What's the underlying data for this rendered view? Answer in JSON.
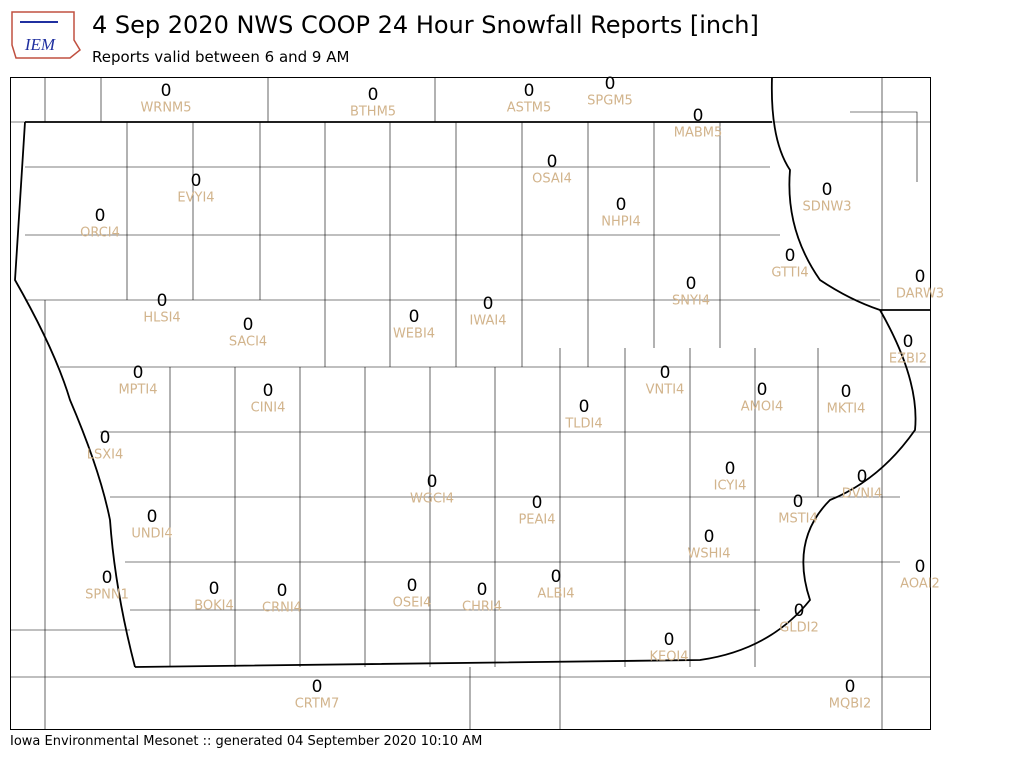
{
  "title": "4 Sep 2020 NWS COOP 24 Hour Snowfall Reports [inch]",
  "subtitle": "Reports valid between 6 and 9 AM",
  "logo": "IEM",
  "footer": "Iowa Environmental Mesonet :: generated 04 September 2020 10:10 AM",
  "stations": [
    {
      "id": "WRNM5",
      "value": 0
    },
    {
      "id": "BTHM5",
      "value": 0
    },
    {
      "id": "ASTM5",
      "value": 0
    },
    {
      "id": "SPGM5",
      "value": 0
    },
    {
      "id": "MABM5",
      "value": 0
    },
    {
      "id": "OSAI4",
      "value": 0
    },
    {
      "id": "EVYI4",
      "value": 0
    },
    {
      "id": "ORCI4",
      "value": 0
    },
    {
      "id": "NHPI4",
      "value": 0
    },
    {
      "id": "SDNW3",
      "value": 0
    },
    {
      "id": "GTTI4",
      "value": 0
    },
    {
      "id": "DARW3",
      "value": 0
    },
    {
      "id": "SNYI4",
      "value": 0
    },
    {
      "id": "HLSI4",
      "value": 0
    },
    {
      "id": "SACI4",
      "value": 0
    },
    {
      "id": "WEBI4",
      "value": 0
    },
    {
      "id": "IWAI4",
      "value": 0
    },
    {
      "id": "EZBI2",
      "value": 0
    },
    {
      "id": "MPTI4",
      "value": 0
    },
    {
      "id": "CINI4",
      "value": 0
    },
    {
      "id": "VNTI4",
      "value": 0
    },
    {
      "id": "AMOI4",
      "value": 0
    },
    {
      "id": "MKTI4",
      "value": 0
    },
    {
      "id": "TLDI4",
      "value": 0
    },
    {
      "id": "LSXI4",
      "value": 0
    },
    {
      "id": "ICYI4",
      "value": 0
    },
    {
      "id": "DVNI4",
      "value": 0
    },
    {
      "id": "WGCI4",
      "value": 0
    },
    {
      "id": "PEAI4",
      "value": 0
    },
    {
      "id": "MSTI4",
      "value": 0
    },
    {
      "id": "UNDI4",
      "value": 0
    },
    {
      "id": "WSHI4",
      "value": 0
    },
    {
      "id": "AOAI2",
      "value": 0
    },
    {
      "id": "SPNN1",
      "value": 0
    },
    {
      "id": "BOKI4",
      "value": 0
    },
    {
      "id": "CRNI4",
      "value": 0
    },
    {
      "id": "OSEI4",
      "value": 0
    },
    {
      "id": "CHRI4",
      "value": 0
    },
    {
      "id": "ALBI4",
      "value": 0
    },
    {
      "id": "GLDI2",
      "value": 0
    },
    {
      "id": "KEOI4",
      "value": 0
    },
    {
      "id": "CRTM7",
      "value": 0
    },
    {
      "id": "MQBI2",
      "value": 0
    }
  ]
}
